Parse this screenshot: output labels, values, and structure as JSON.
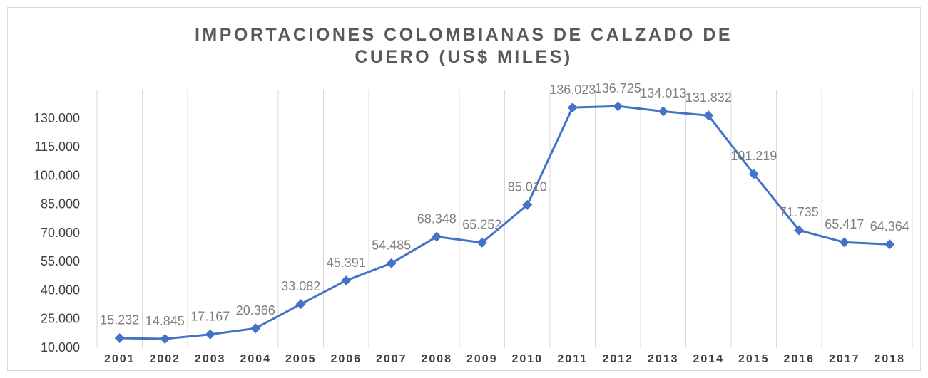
{
  "chart_data": {
    "type": "line",
    "title": "IMPORTACIONES COLOMBIANAS DE CALZADO DE CUERO (US$ MILES)",
    "categories": [
      "2001",
      "2002",
      "2003",
      "2004",
      "2005",
      "2006",
      "2007",
      "2008",
      "2009",
      "2010",
      "2011",
      "2012",
      "2013",
      "2014",
      "2015",
      "2016",
      "2017",
      "2018"
    ],
    "series": [
      {
        "name": "Importaciones",
        "color": "#4472c4",
        "values": [
          15232,
          14845,
          17167,
          20366,
          33082,
          45391,
          54485,
          68348,
          65252,
          85010,
          136023,
          136725,
          134013,
          131832,
          101219,
          71735,
          65417,
          64364
        ],
        "value_labels": [
          "15.232",
          "14.845",
          "17.167",
          "20.366",
          "33.082",
          "45.391",
          "54.485",
          "68.348",
          "65.252",
          "85.010",
          "136.023",
          "136.725",
          "134.013",
          "131.832",
          "101.219",
          "71.735",
          "65.417",
          "64.364"
        ]
      }
    ],
    "ylim": [
      10000,
      145000
    ],
    "yticks": [
      {
        "value": 10000,
        "label": "10.000"
      },
      {
        "value": 25000,
        "label": "25.000"
      },
      {
        "value": 40000,
        "label": "40.000"
      },
      {
        "value": 55000,
        "label": "55.000"
      },
      {
        "value": 70000,
        "label": "70.000"
      },
      {
        "value": 85000,
        "label": "85.000"
      },
      {
        "value": 100000,
        "label": "100.000"
      },
      {
        "value": 115000,
        "label": "115.000"
      },
      {
        "value": 130000,
        "label": "130.000"
      }
    ],
    "grid": true
  }
}
